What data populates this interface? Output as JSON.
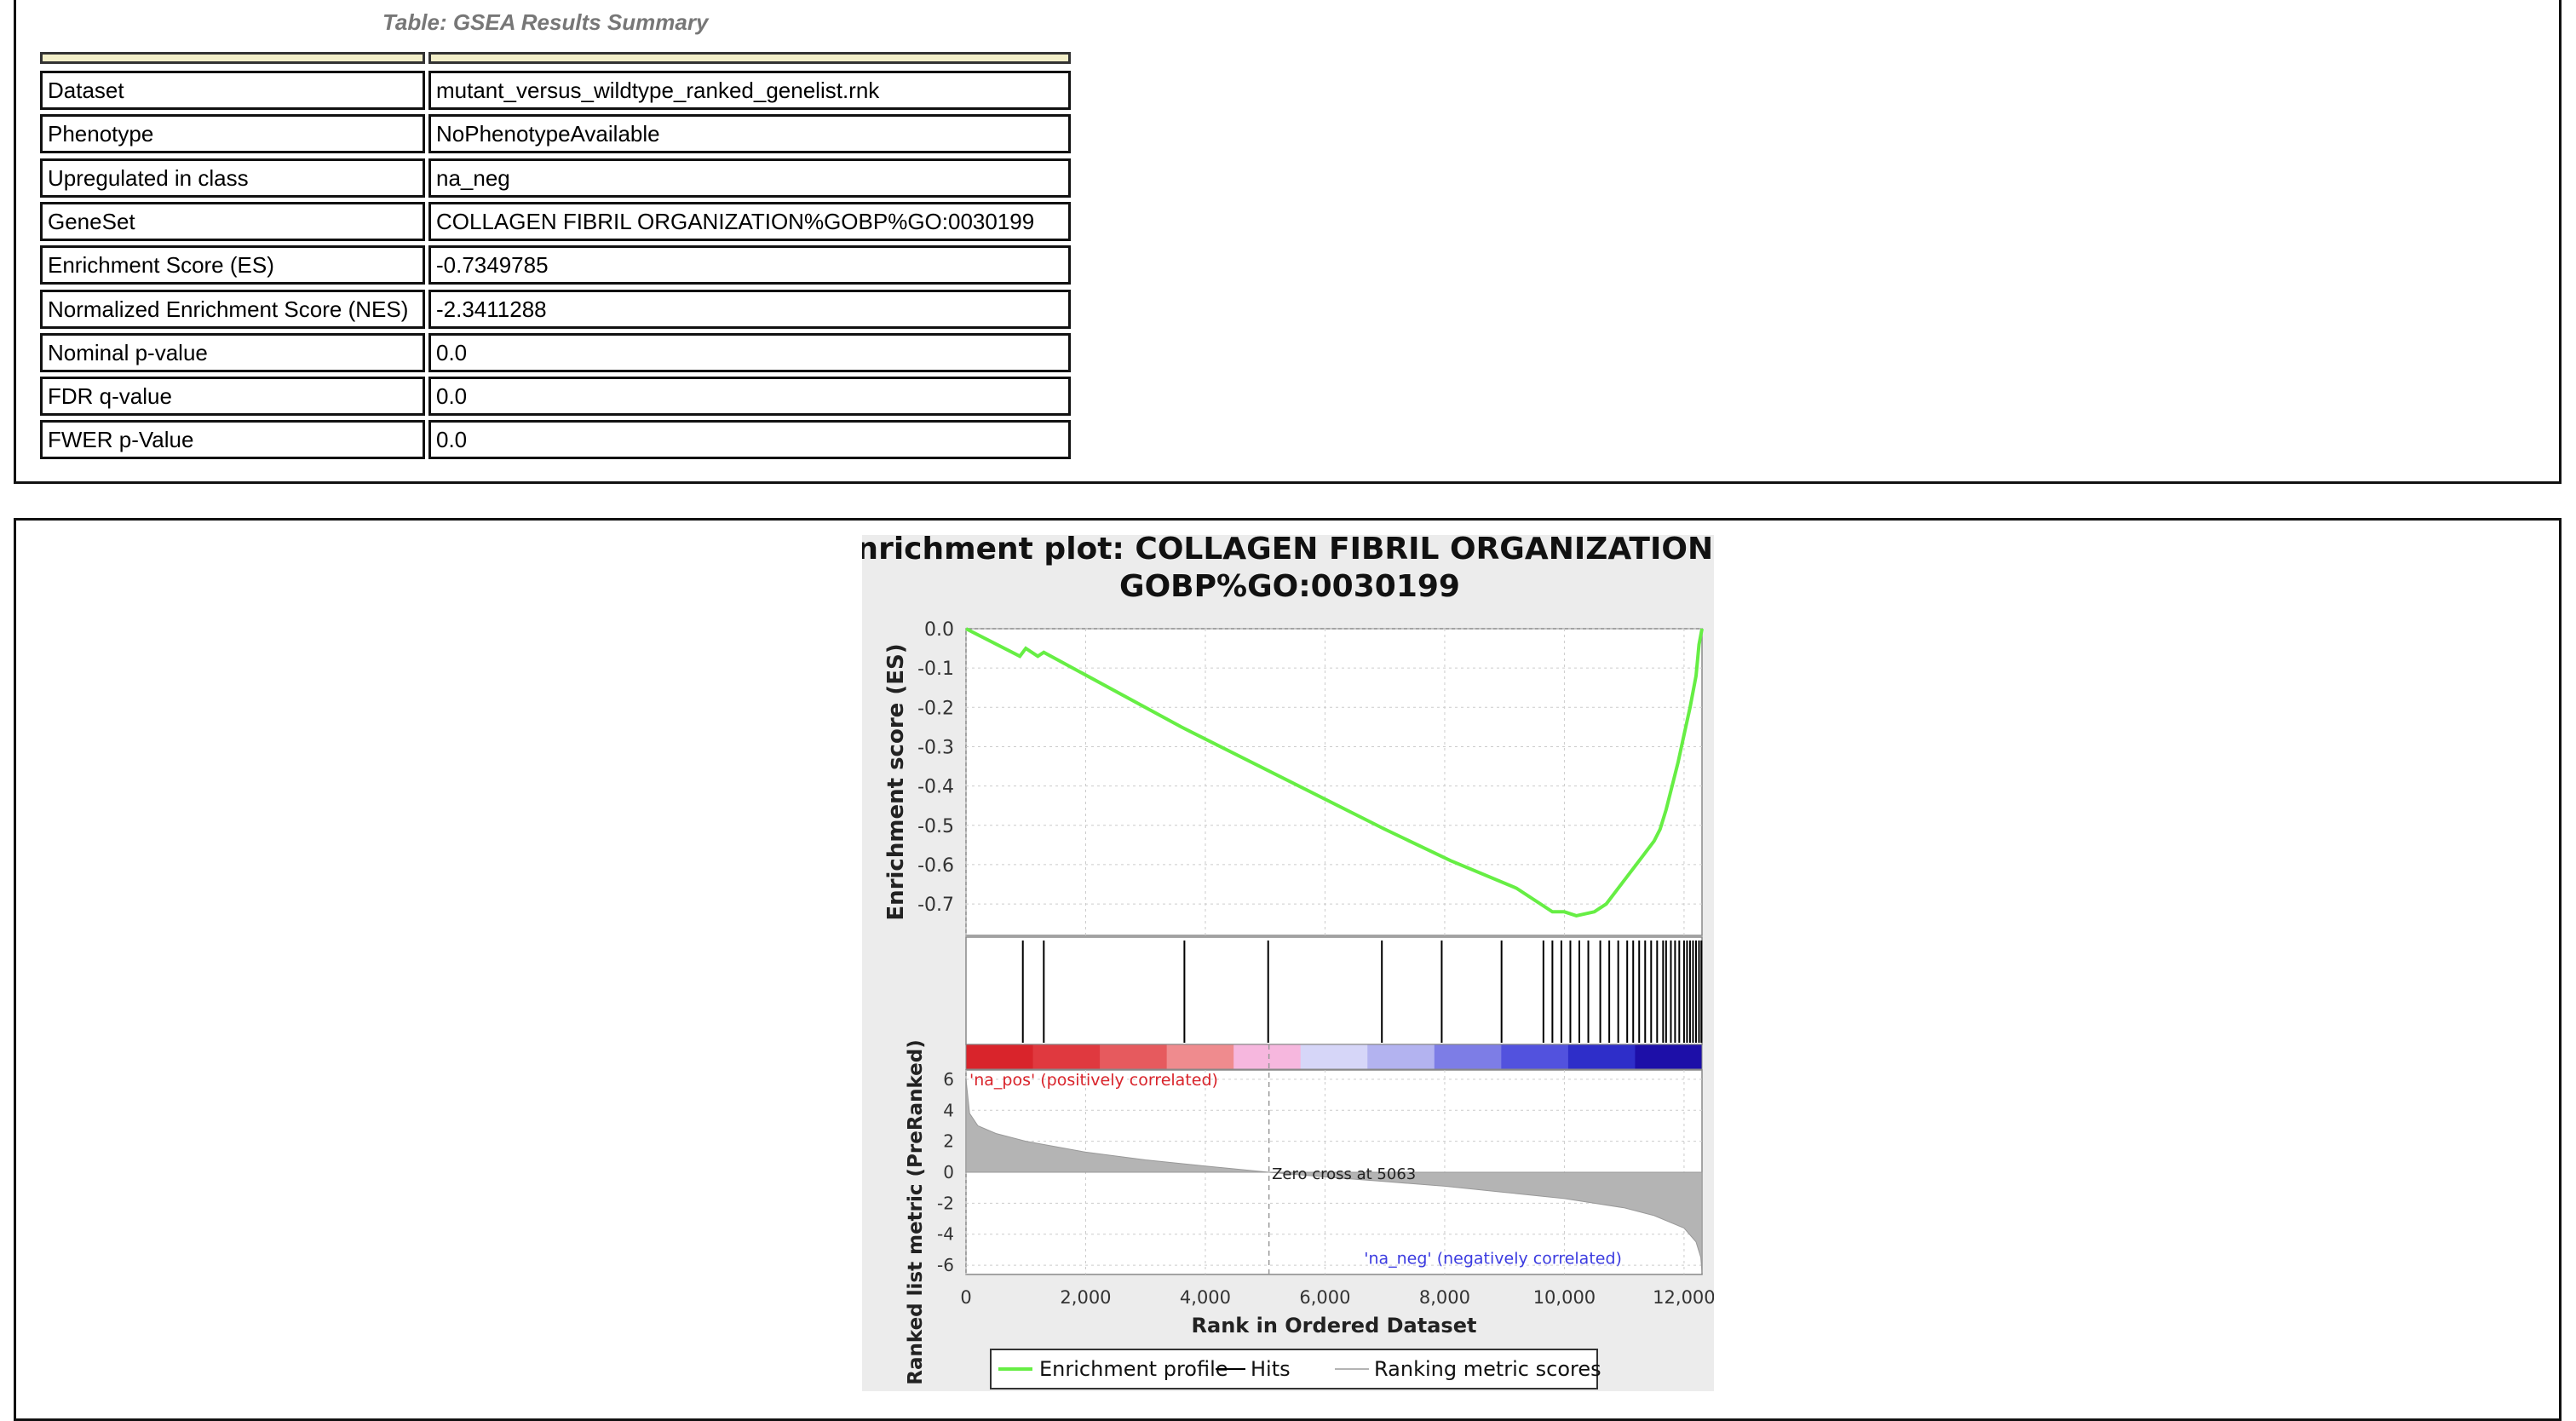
{
  "table": {
    "caption": "Table: GSEA Results Summary",
    "rows": [
      {
        "label": "Dataset",
        "value": "mutant_versus_wildtype_ranked_genelist.rnk"
      },
      {
        "label": "Phenotype",
        "value": "NoPhenotypeAvailable"
      },
      {
        "label": "Upregulated in class",
        "value": "na_neg"
      },
      {
        "label": "GeneSet",
        "value": "COLLAGEN FIBRIL ORGANIZATION%GOBP%GO:0030199"
      },
      {
        "label": "Enrichment Score (ES)",
        "value": "-0.7349785"
      },
      {
        "label": "Normalized Enrichment Score (NES)",
        "value": "-2.3411288"
      },
      {
        "label": "Nominal p-value",
        "value": "0.0"
      },
      {
        "label": "FDR q-value",
        "value": "0.0"
      },
      {
        "label": "FWER p-Value",
        "value": "0.0"
      }
    ]
  },
  "chart_data": {
    "type": "line",
    "title_line1": "Enrichment plot: COLLAGEN FIBRIL ORGANIZATION%",
    "title_line2": "GOBP%GO:0030199",
    "ylabel_top": "Enrichment score (ES)",
    "ylabel_bottom": "Ranked list metric (PreRanked)",
    "xlabel": "Rank in Ordered Dataset",
    "xlim": [
      0,
      12300
    ],
    "ylim_es": [
      -0.78,
      0.0
    ],
    "ylim_metric": [
      -6.6,
      6.6
    ],
    "x_ticks": [
      0,
      2000,
      4000,
      6000,
      8000,
      10000,
      12000
    ],
    "x_tick_labels": [
      "0",
      "2,000",
      "4,000",
      "6,000",
      "8,000",
      "10,000",
      "12,000"
    ],
    "es_ticks": [
      0.0,
      -0.1,
      -0.2,
      -0.3,
      -0.4,
      -0.5,
      -0.6,
      -0.7
    ],
    "es_tick_labels": [
      "0.0",
      "-0.1",
      "-0.2",
      "-0.3",
      "-0.4",
      "-0.5",
      "-0.6",
      "-0.7"
    ],
    "metric_ticks": [
      6,
      4,
      2,
      0,
      -2,
      -4,
      -6
    ],
    "metric_tick_labels": [
      "6",
      "4",
      "2",
      "0",
      "-2",
      "-4",
      "-6"
    ],
    "es_profile": {
      "x": [
        0,
        900,
        1000,
        1200,
        1300,
        3600,
        7000,
        8100,
        9200,
        9800,
        10000,
        10200,
        10500,
        10700,
        10900,
        11100,
        11300,
        11500,
        11600,
        11700,
        11800,
        11900,
        12000,
        12100,
        12200,
        12250,
        12300
      ],
      "y": [
        0.0,
        -0.07,
        -0.05,
        -0.07,
        -0.06,
        -0.25,
        -0.51,
        -0.59,
        -0.66,
        -0.72,
        -0.72,
        -0.73,
        -0.72,
        -0.7,
        -0.66,
        -0.62,
        -0.58,
        -0.54,
        -0.51,
        -0.46,
        -0.4,
        -0.34,
        -0.27,
        -0.2,
        -0.12,
        -0.04,
        0.0
      ]
    },
    "hits": [
      950,
      1300,
      3650,
      5050,
      6950,
      7950,
      8950,
      9650,
      9800,
      9950,
      10100,
      10250,
      10400,
      10600,
      10750,
      10900,
      11050,
      11150,
      11250,
      11350,
      11450,
      11550,
      11650,
      11700,
      11780,
      11850,
      11920,
      12000,
      12050,
      12100,
      12150,
      12200,
      12250,
      12290
    ],
    "metric_curve": {
      "x": [
        0,
        60,
        200,
        500,
        1000,
        2000,
        3000,
        4000,
        5063,
        6000,
        7000,
        8000,
        9000,
        10000,
        11000,
        11500,
        12000,
        12200,
        12280,
        12300
      ],
      "y": [
        6.0,
        3.8,
        3.0,
        2.5,
        2.0,
        1.3,
        0.8,
        0.4,
        0.0,
        -0.3,
        -0.6,
        -0.9,
        -1.3,
        -1.7,
        -2.3,
        -2.8,
        -3.6,
        -4.5,
        -5.5,
        -6.5
      ]
    },
    "zero_cross_rank": 5063,
    "annotations": {
      "pos": "'na_pos' (positively correlated)",
      "neg": "'na_neg' (negatively correlated)",
      "zero": "Zero cross at 5063"
    },
    "color_bar": [
      "#d9242b",
      "#e0393f",
      "#e65a5e",
      "#ef8b8e",
      "#f6b7de",
      "#d6d6f8",
      "#b3b3f0",
      "#7d7de6",
      "#5252de",
      "#2e2ec9",
      "#1d0fa8"
    ],
    "legend": [
      "Enrichment profile",
      "Hits",
      "Ranking metric scores"
    ],
    "colors": {
      "profile": "#66ee44",
      "hits": "#000000",
      "metric": "#b4b4b4",
      "pos": "#d9242b",
      "neg": "#3b3be0",
      "grid": "#cccccc"
    }
  }
}
